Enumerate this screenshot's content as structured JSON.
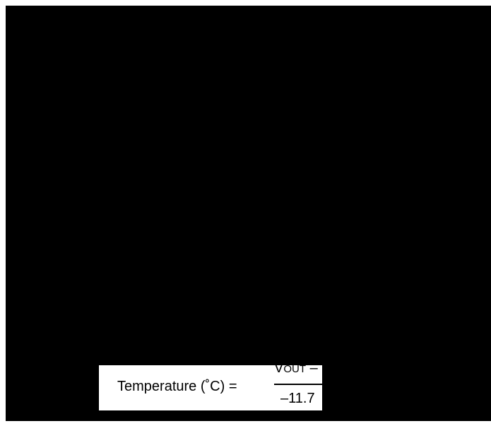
{
  "formula": {
    "label": "Temperature (˚C) =",
    "numerator_symbol": "V",
    "numerator_subscript": "OUT",
    "numerator_rest": " –",
    "denominator": "–11.7"
  },
  "colors": {
    "background": "#000000",
    "formula_box": "#ffffff",
    "text": "#000000"
  }
}
